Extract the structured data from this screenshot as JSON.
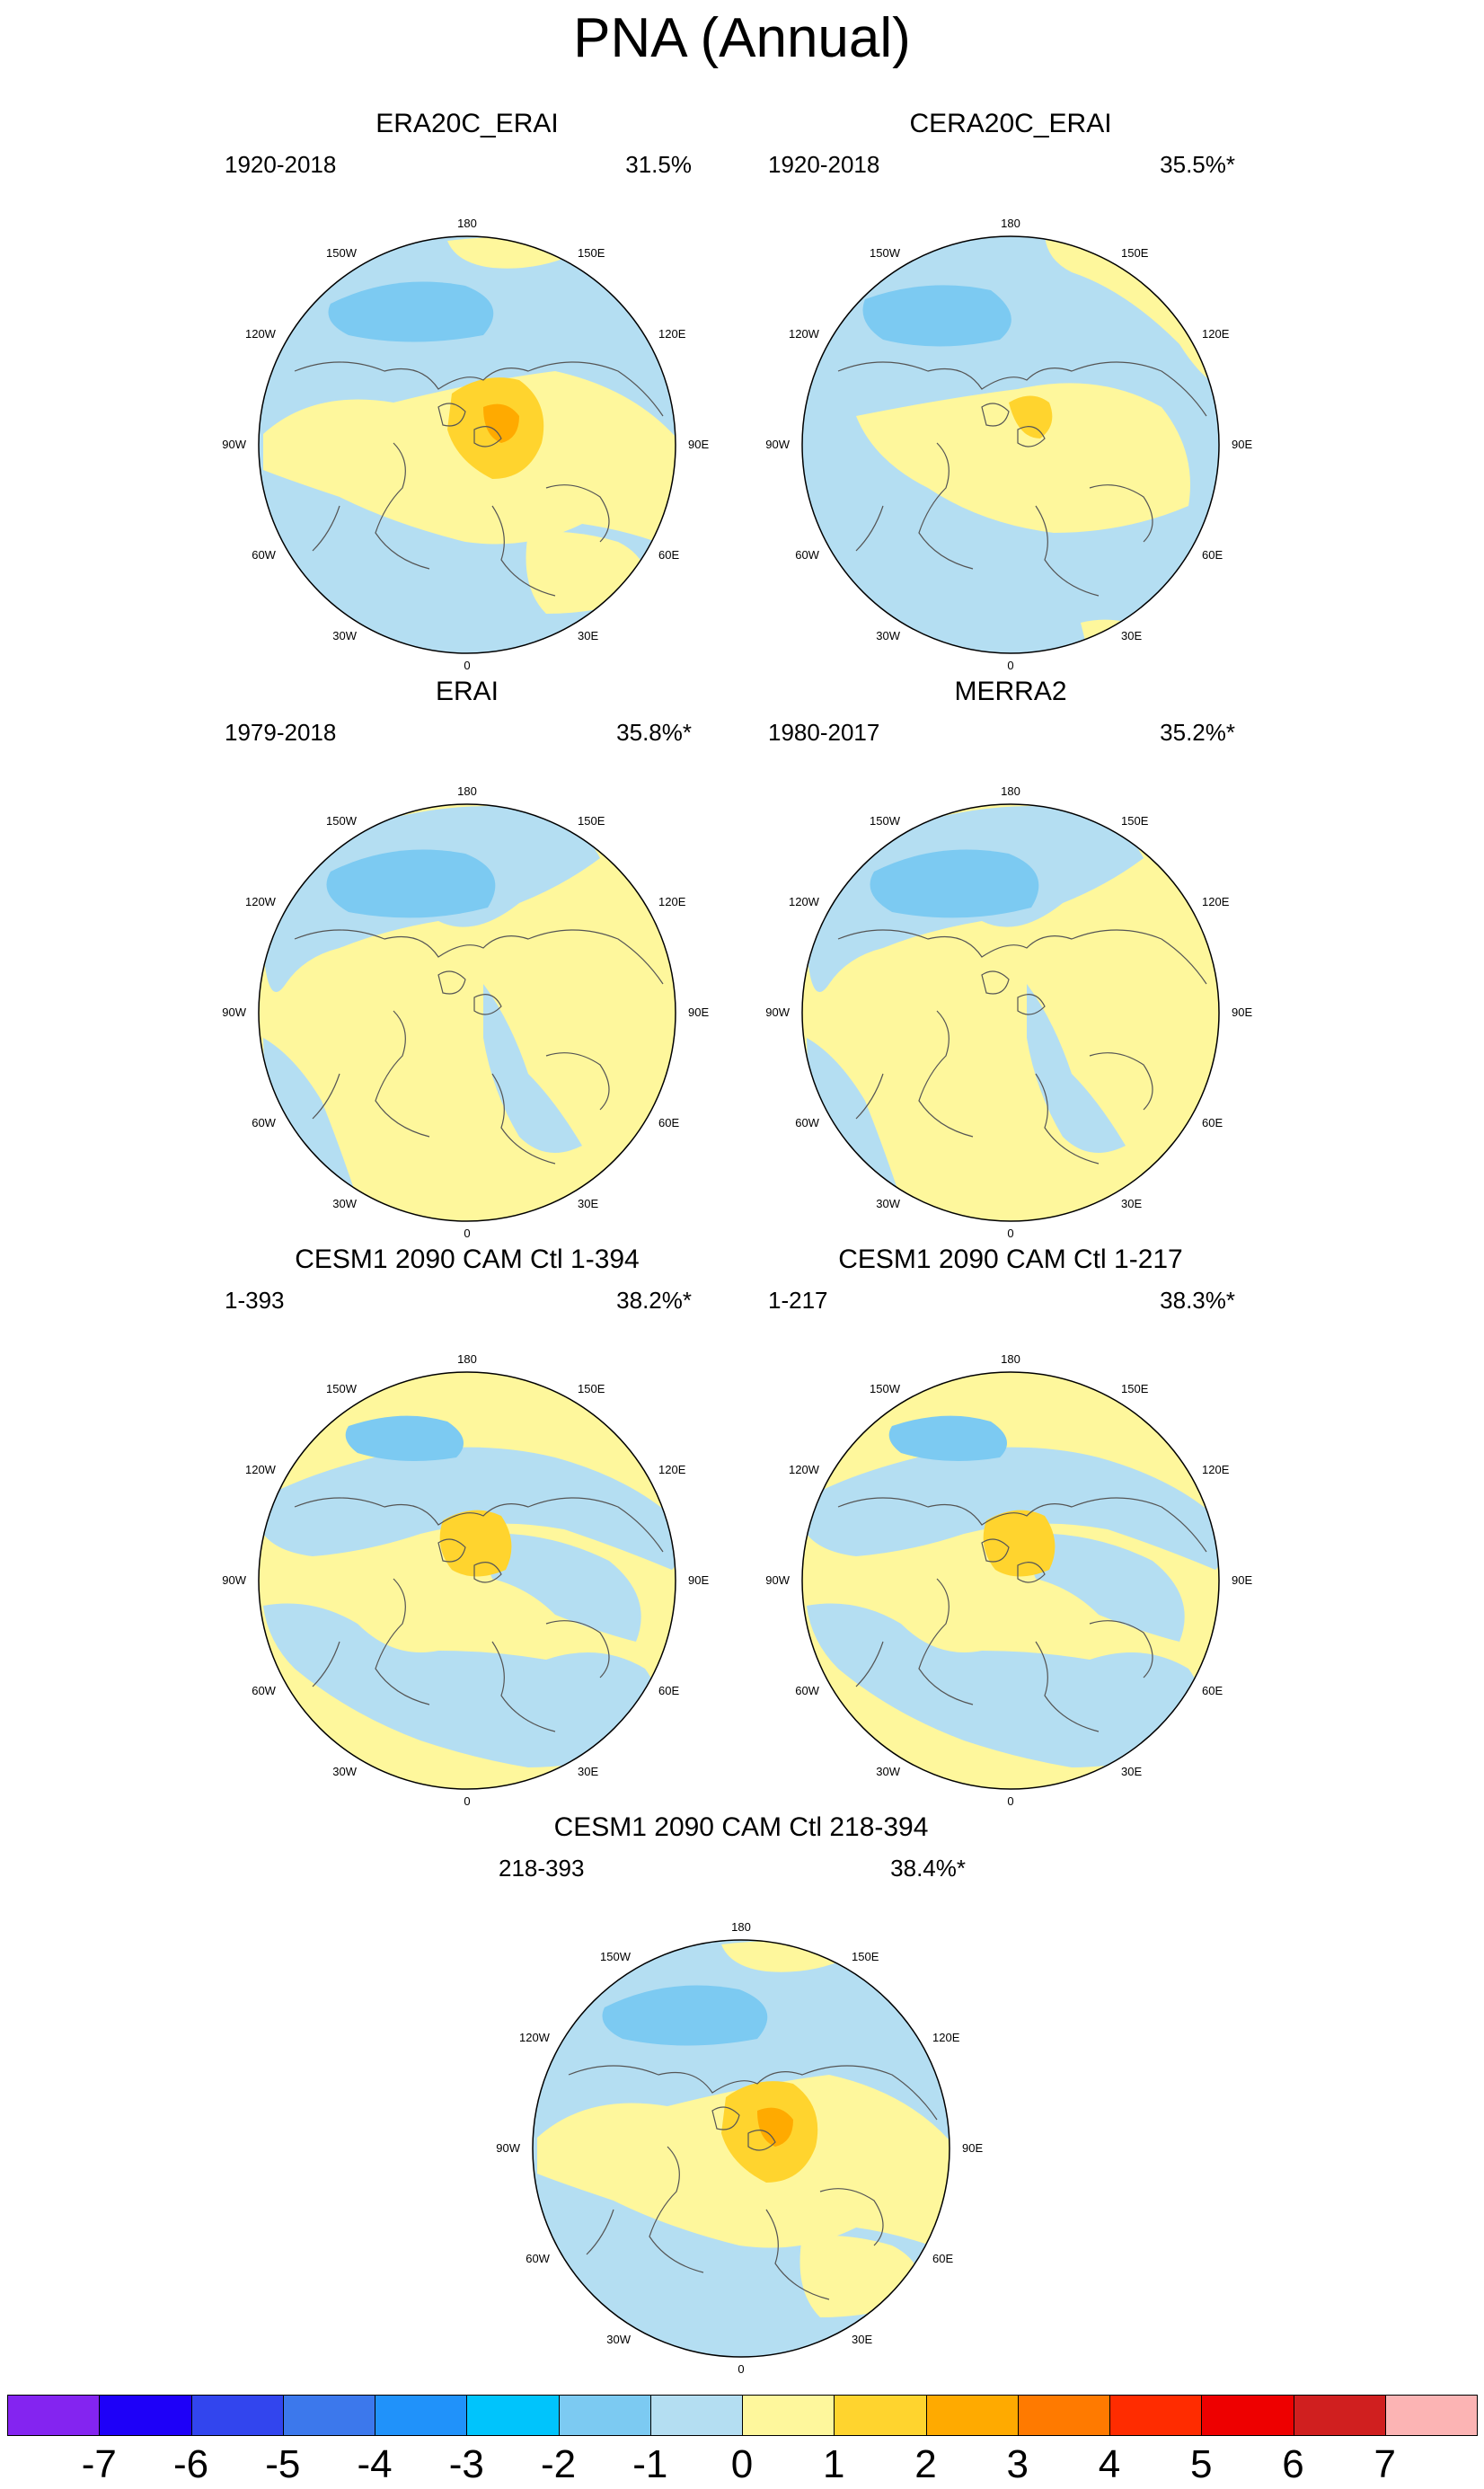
{
  "title": "PNA (Annual)",
  "longitude_labels": [
    "180",
    "150E",
    "120E",
    "90E",
    "60E",
    "30E",
    "0",
    "30W",
    "60W",
    "90W",
    "120W",
    "150W"
  ],
  "panels": [
    {
      "title": "ERA20C_ERAI",
      "period": "1920-2018",
      "variance": "31.5%",
      "scheme": "A"
    },
    {
      "title": "CERA20C_ERAI",
      "period": "1920-2018",
      "variance": "35.5%*",
      "scheme": "B"
    },
    {
      "title": "ERAI",
      "period": "1979-2018",
      "variance": "35.8%*",
      "scheme": "C"
    },
    {
      "title": "MERRA2",
      "period": "1980-2017",
      "variance": "35.2%*",
      "scheme": "C"
    },
    {
      "title": "CESM1 2090 CAM Ctl 1-394",
      "period": "1-393",
      "variance": "38.2%*",
      "scheme": "D"
    },
    {
      "title": "CESM1 2090 CAM Ctl 1-217",
      "period": "1-217",
      "variance": "38.3%*",
      "scheme": "D"
    },
    {
      "title": "CESM1 2090 CAM Ctl 218-394",
      "period": "218-393",
      "variance": "38.4%*",
      "scheme": "A"
    }
  ],
  "colorbar": {
    "colors": [
      "#8424f0",
      "#1e00f8",
      "#3245ee",
      "#3c78ec",
      "#2092fa",
      "#00c4fc",
      "#7ccaf2",
      "#b4def2",
      "#fef79c",
      "#ffd42e",
      "#ffaa00",
      "#ff7a00",
      "#ff2c00",
      "#ee0000",
      "#d01f1f",
      "#fcb4b4"
    ],
    "ticks": [
      "-7",
      "-6",
      "-5",
      "-4",
      "-3",
      "-2",
      "-1",
      "0",
      "1",
      "2",
      "3",
      "4",
      "5",
      "6",
      "7"
    ]
  }
}
